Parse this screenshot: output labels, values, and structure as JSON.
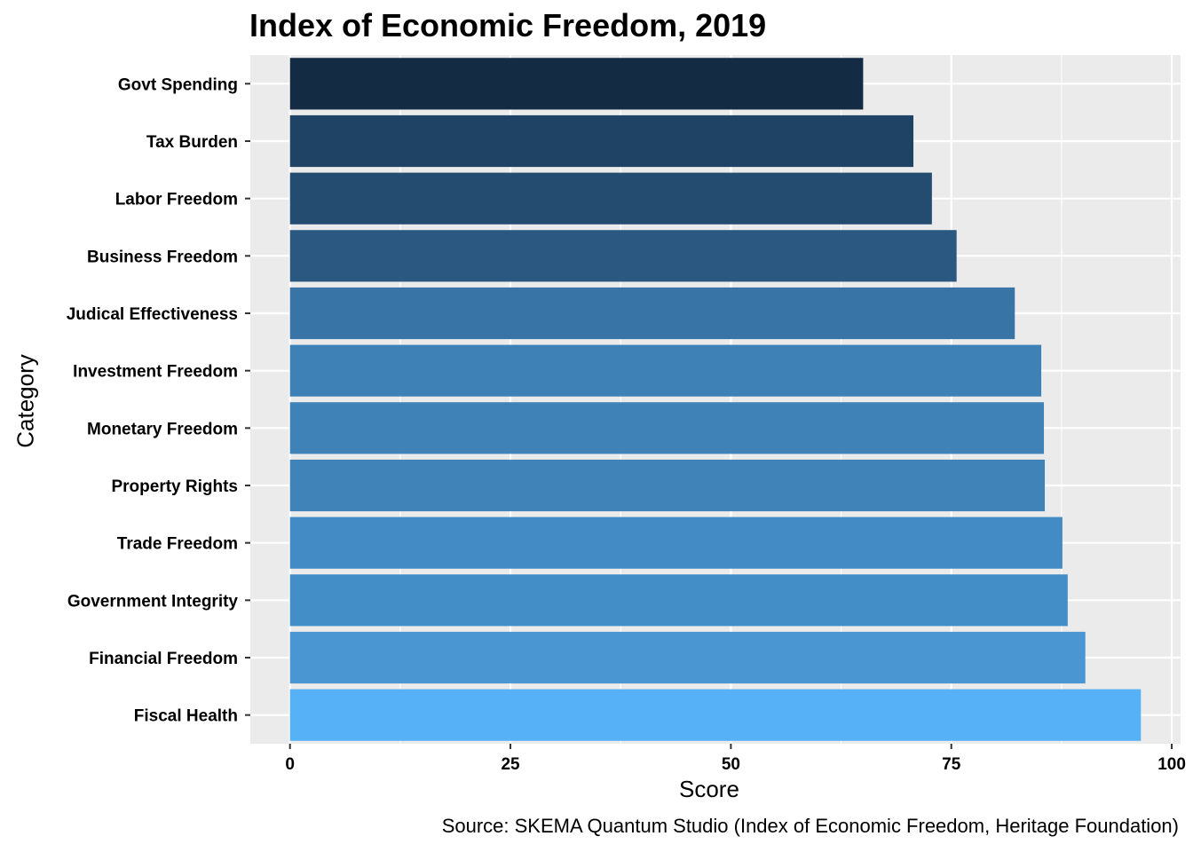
{
  "chart_data": {
    "type": "bar",
    "orientation": "horizontal",
    "title": "Index of Economic Freedom, 2019",
    "xlabel": "Score",
    "ylabel": "Category",
    "caption": "Source: SKEMA Quantum Studio (Index of Economic Freedom, Heritage Foundation)",
    "categories": [
      "Govt Spending",
      "Tax Burden",
      "Labor Freedom",
      "Business Freedom",
      "Judical Effectiveness",
      "Investment Freedom",
      "Monetary Freedom",
      "Property Rights",
      "Trade Freedom",
      "Government Integrity",
      "Financial Freedom",
      "Fiscal Health"
    ],
    "values": [
      65.0,
      70.7,
      72.8,
      75.6,
      82.2,
      85.2,
      85.5,
      85.6,
      87.6,
      88.2,
      90.2,
      96.5
    ],
    "xlim": [
      -4.5,
      101
    ],
    "xticks": [
      0,
      25,
      50,
      75,
      100
    ],
    "grid": true,
    "legend": "none",
    "colors": {
      "panel_background": "#ebebeb",
      "gridline": "#ffffff",
      "gradient_low": "#132b43",
      "gradient_high": "#56b1f7"
    }
  }
}
